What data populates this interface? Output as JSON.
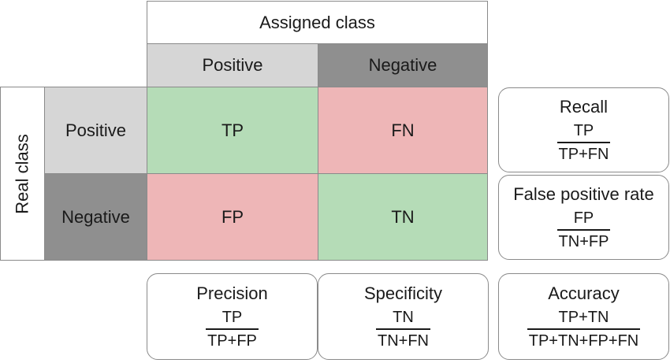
{
  "assigned_class": "Assigned class",
  "real_class": "Real class",
  "columns": {
    "positive": "Positive",
    "negative": "Negative"
  },
  "rows": {
    "positive": "Positive",
    "negative": "Negative"
  },
  "cells": {
    "tp": "TP",
    "fn": "FN",
    "fp": "FP",
    "tn": "TN"
  },
  "colors": {
    "correct": "#b5dcb7",
    "incorrect": "#eeb6b7",
    "light_gray": "#d6d6d6",
    "dark_gray": "#8f8f8f"
  },
  "metrics": {
    "recall": {
      "name": "Recall",
      "numerator": "TP",
      "denominator": "TP+FN"
    },
    "fpr": {
      "name": "False positive rate",
      "numerator": "FP",
      "denominator": "TN+FP"
    },
    "precision": {
      "name": "Precision",
      "numerator": "TP",
      "denominator": "TP+FP"
    },
    "specificity": {
      "name": "Specificity",
      "numerator": "TN",
      "denominator": "TN+FN"
    },
    "accuracy": {
      "name": "Accuracy",
      "numerator": "TP+TN",
      "denominator": "TP+TN+FP+FN"
    }
  }
}
